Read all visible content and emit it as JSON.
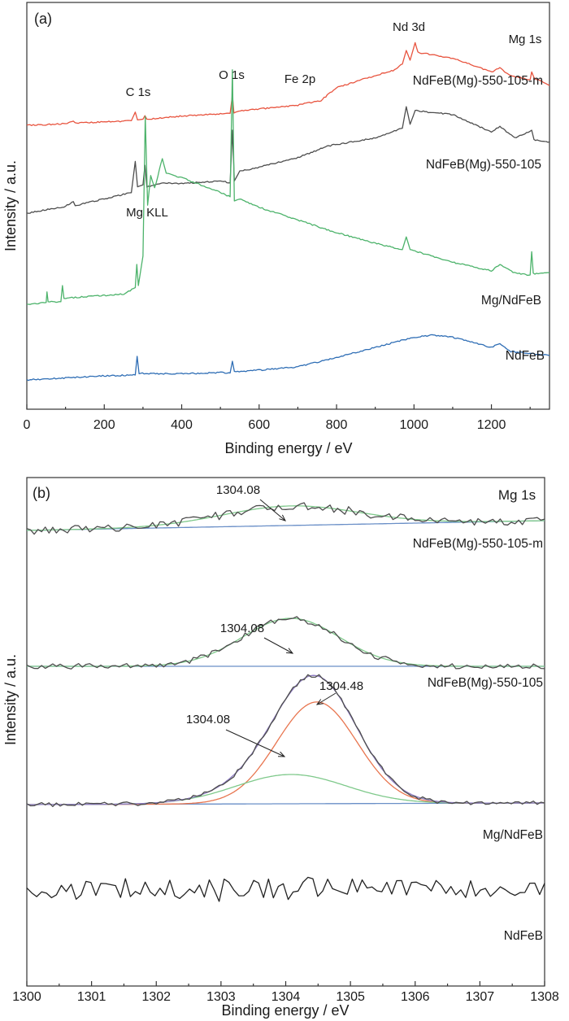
{
  "chart_data": [
    {
      "panel": "(a)",
      "type": "line",
      "xlabel": "Binding energy / eV",
      "ylabel": "Intensity / a.u.",
      "xlim": [
        0,
        1350
      ],
      "xticks": [
        0,
        200,
        400,
        600,
        800,
        1000,
        1200
      ],
      "yticks": "none",
      "grid": false,
      "peak_labels": [
        {
          "text": "C 1s",
          "x": 285,
          "row": 0
        },
        {
          "text": "O 1s",
          "x": 531,
          "row": 0
        },
        {
          "text": "Fe 2p",
          "x": 711,
          "row": 0
        },
        {
          "text": "Nd 3d",
          "x": 982,
          "row": 0
        },
        {
          "text": "Mg 1s",
          "x": 1304,
          "row": 0
        },
        {
          "text": "Mg KLL",
          "x": 306,
          "row": 2
        }
      ],
      "series": [
        {
          "name": "NdFeB(Mg)-550-105-m",
          "color": "#e8543f",
          "baseline": 1.0,
          "points": [
            [
              0,
              0.08
            ],
            [
              50,
              0.1
            ],
            [
              100,
              0.13
            ],
            [
              120,
              0.19
            ],
            [
              125,
              0.14
            ],
            [
              200,
              0.17
            ],
            [
              270,
              0.2
            ],
            [
              280,
              0.42
            ],
            [
              286,
              0.22
            ],
            [
              300,
              0.24
            ],
            [
              305,
              0.33
            ],
            [
              310,
              0.24
            ],
            [
              400,
              0.32
            ],
            [
              500,
              0.38
            ],
            [
              525,
              0.39
            ],
            [
              531,
              0.85
            ],
            [
              535,
              0.4
            ],
            [
              560,
              0.46
            ],
            [
              600,
              0.5
            ],
            [
              700,
              0.6
            ],
            [
              760,
              0.72
            ],
            [
              800,
              1.05
            ],
            [
              880,
              1.3
            ],
            [
              950,
              1.5
            ],
            [
              970,
              1.65
            ],
            [
              980,
              2.0
            ],
            [
              990,
              1.75
            ],
            [
              1003,
              2.2
            ],
            [
              1010,
              1.95
            ],
            [
              1100,
              1.8
            ],
            [
              1200,
              1.45
            ],
            [
              1222,
              1.55
            ],
            [
              1250,
              1.35
            ],
            [
              1300,
              1.25
            ],
            [
              1304,
              1.45
            ],
            [
              1310,
              1.3
            ],
            [
              1350,
              1.1
            ]
          ]
        },
        {
          "name": "NdFeB(Mg)-550-105",
          "color": "#4d4d4d",
          "baseline": 1.0,
          "points": [
            [
              0,
              0.12
            ],
            [
              100,
              0.3
            ],
            [
              120,
              0.42
            ],
            [
              125,
              0.32
            ],
            [
              270,
              0.65
            ],
            [
              280,
              1.45
            ],
            [
              286,
              0.8
            ],
            [
              300,
              0.85
            ],
            [
              305,
              1.35
            ],
            [
              310,
              0.8
            ],
            [
              350,
              0.9
            ],
            [
              400,
              0.88
            ],
            [
              500,
              0.95
            ],
            [
              525,
              0.9
            ],
            [
              531,
              2.25
            ],
            [
              536,
              0.95
            ],
            [
              550,
              1.2
            ],
            [
              600,
              1.3
            ],
            [
              700,
              1.55
            ],
            [
              780,
              1.85
            ],
            [
              900,
              2.05
            ],
            [
              970,
              2.3
            ],
            [
              980,
              2.85
            ],
            [
              990,
              2.4
            ],
            [
              1003,
              2.75
            ],
            [
              1100,
              2.65
            ],
            [
              1200,
              2.2
            ],
            [
              1222,
              2.35
            ],
            [
              1260,
              2.05
            ],
            [
              1304,
              2.25
            ],
            [
              1310,
              2.0
            ],
            [
              1350,
              1.95
            ]
          ]
        },
        {
          "name": "Mg/NdFeB",
          "color": "#4db36b",
          "baseline": 1.0,
          "points": [
            [
              0,
              0.05
            ],
            [
              50,
              0.1
            ],
            [
              52,
              0.35
            ],
            [
              55,
              0.12
            ],
            [
              88,
              0.12
            ],
            [
              92,
              0.5
            ],
            [
              96,
              0.2
            ],
            [
              250,
              0.3
            ],
            [
              280,
              0.45
            ],
            [
              284,
              1.0
            ],
            [
              288,
              0.5
            ],
            [
              300,
              1.2
            ],
            [
              306,
              4.5
            ],
            [
              312,
              2.4
            ],
            [
              320,
              3.1
            ],
            [
              330,
              2.8
            ],
            [
              350,
              3.5
            ],
            [
              360,
              3.15
            ],
            [
              400,
              3.05
            ],
            [
              500,
              2.7
            ],
            [
              525,
              2.6
            ],
            [
              531,
              5.6
            ],
            [
              536,
              2.5
            ],
            [
              550,
              2.55
            ],
            [
              600,
              2.35
            ],
            [
              700,
              2.05
            ],
            [
              800,
              1.75
            ],
            [
              900,
              1.5
            ],
            [
              970,
              1.35
            ],
            [
              980,
              1.65
            ],
            [
              990,
              1.35
            ],
            [
              1100,
              1.05
            ],
            [
              1200,
              0.85
            ],
            [
              1222,
              1.0
            ],
            [
              1260,
              0.8
            ],
            [
              1300,
              0.75
            ],
            [
              1304,
              1.3
            ],
            [
              1308,
              0.78
            ],
            [
              1350,
              0.8
            ]
          ]
        },
        {
          "name": "NdFeB",
          "color": "#2f6eb5",
          "baseline": 1.0,
          "points": [
            [
              0,
              0.0
            ],
            [
              200,
              0.1
            ],
            [
              280,
              0.12
            ],
            [
              285,
              0.58
            ],
            [
              290,
              0.16
            ],
            [
              400,
              0.15
            ],
            [
              500,
              0.18
            ],
            [
              525,
              0.17
            ],
            [
              531,
              0.46
            ],
            [
              536,
              0.2
            ],
            [
              600,
              0.24
            ],
            [
              700,
              0.32
            ],
            [
              800,
              0.55
            ],
            [
              900,
              0.8
            ],
            [
              1000,
              1.05
            ],
            [
              1050,
              1.1
            ],
            [
              1100,
              1.05
            ],
            [
              1200,
              0.8
            ],
            [
              1222,
              0.9
            ],
            [
              1250,
              0.7
            ],
            [
              1300,
              0.65
            ],
            [
              1350,
              0.6
            ]
          ]
        }
      ]
    },
    {
      "panel": "(b)",
      "type": "line",
      "region_label": "Mg 1s",
      "xlabel": "Binding energy / eV",
      "ylabel": "Intensity / a.u.",
      "xlim": [
        1300,
        1308
      ],
      "xticks": [
        1300,
        1301,
        1302,
        1303,
        1304,
        1305,
        1306,
        1307,
        1308
      ],
      "yticks": "none",
      "grid": false,
      "series": [
        {
          "name": "NdFeB(Mg)-550-105-m",
          "components": [
            {
              "role": "raw",
              "color": "#4d4d4d"
            },
            {
              "role": "fit",
              "center": 1304.08,
              "color": "#7fc98b"
            },
            {
              "role": "background",
              "color": "#6a8fc7"
            }
          ],
          "peak_annotations": [
            "1304.08"
          ]
        },
        {
          "name": "NdFeB(Mg)-550-105",
          "components": [
            {
              "role": "raw",
              "color": "#4d4d4d"
            },
            {
              "role": "fit",
              "center": 1304.08,
              "color": "#7fc98b"
            },
            {
              "role": "background",
              "color": "#6a8fc7"
            }
          ],
          "peak_annotations": [
            "1304.08"
          ]
        },
        {
          "name": "Mg/NdFeB",
          "components": [
            {
              "role": "raw",
              "color": "#4d4d4d"
            },
            {
              "role": "envelope",
              "color": "#8e7cc3"
            },
            {
              "role": "fit",
              "center": 1304.48,
              "color": "#e8754f"
            },
            {
              "role": "fit",
              "center": 1304.08,
              "color": "#7fc98b"
            },
            {
              "role": "background",
              "color": "#6a8fc7"
            }
          ],
          "peak_annotations": [
            "1304.48",
            "1304.08"
          ]
        },
        {
          "name": "NdFeB",
          "components": [
            {
              "role": "raw",
              "color": "#222222"
            }
          ],
          "peak_annotations": []
        }
      ]
    }
  ]
}
